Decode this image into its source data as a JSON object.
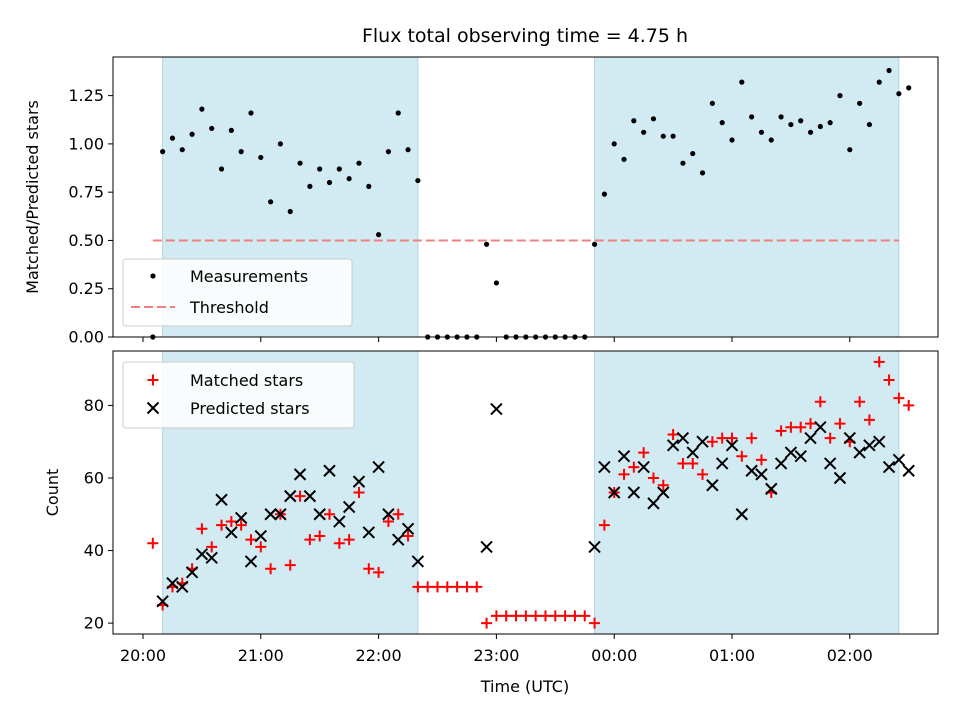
{
  "figure": {
    "title": "Flux total observing time = 4.75 h",
    "xlabel": "Time (UTC)",
    "x_ticks": [
      "20:00",
      "21:00",
      "22:00",
      "23:00",
      "00:00",
      "01:00",
      "02:00"
    ]
  },
  "colors": {
    "shade": "#add8e6",
    "threshold": "#f08080",
    "measurement": "#000000",
    "matched": "#ff0000",
    "predicted": "#000000"
  },
  "chart_data": [
    {
      "type": "scatter",
      "ylabel": "Matched/Predicted stars",
      "xlim": [
        "20:00",
        "02:40"
      ],
      "ylim": [
        0,
        1.45
      ],
      "y_ticks": [
        "0.00",
        "0.25",
        "0.50",
        "0.75",
        "1.00",
        "1.25"
      ],
      "legend": {
        "placement": "lower-left",
        "entries": [
          "Measurements",
          "Threshold"
        ]
      },
      "threshold": {
        "y": 0.5,
        "x_start": "20:05",
        "x_end": "02:25"
      },
      "shaded_intervals": [
        [
          "20:10",
          "22:20"
        ],
        [
          "23:50",
          "02:25"
        ]
      ],
      "series": [
        {
          "name": "Measurements",
          "points": [
            [
              "20:05",
              0.0
            ],
            [
              "20:10",
              0.96
            ],
            [
              "20:15",
              1.03
            ],
            [
              "20:20",
              0.97
            ],
            [
              "20:25",
              1.05
            ],
            [
              "20:30",
              1.18
            ],
            [
              "20:35",
              1.08
            ],
            [
              "20:40",
              0.87
            ],
            [
              "20:45",
              1.07
            ],
            [
              "20:50",
              0.96
            ],
            [
              "20:55",
              1.16
            ],
            [
              "21:00",
              0.93
            ],
            [
              "21:05",
              0.7
            ],
            [
              "21:10",
              1.0
            ],
            [
              "21:15",
              0.65
            ],
            [
              "21:20",
              0.9
            ],
            [
              "21:25",
              0.78
            ],
            [
              "21:30",
              0.87
            ],
            [
              "21:35",
              0.8
            ],
            [
              "21:40",
              0.87
            ],
            [
              "21:45",
              0.82
            ],
            [
              "21:50",
              0.9
            ],
            [
              "21:55",
              0.78
            ],
            [
              "22:00",
              0.53
            ],
            [
              "22:05",
              0.96
            ],
            [
              "22:10",
              1.16
            ],
            [
              "22:15",
              0.97
            ],
            [
              "22:20",
              0.81
            ],
            [
              "22:25",
              0.0
            ],
            [
              "22:30",
              0.0
            ],
            [
              "22:35",
              0.0
            ],
            [
              "22:40",
              0.0
            ],
            [
              "22:45",
              0.0
            ],
            [
              "22:50",
              0.0
            ],
            [
              "22:55",
              0.48
            ],
            [
              "23:00",
              0.28
            ],
            [
              "23:05",
              0.0
            ],
            [
              "23:10",
              0.0
            ],
            [
              "23:15",
              0.0
            ],
            [
              "23:20",
              0.0
            ],
            [
              "23:25",
              0.0
            ],
            [
              "23:30",
              0.0
            ],
            [
              "23:35",
              0.0
            ],
            [
              "23:40",
              0.0
            ],
            [
              "23:45",
              0.0
            ],
            [
              "23:50",
              0.48
            ],
            [
              "23:55",
              0.74
            ],
            [
              "00:00",
              1.0
            ],
            [
              "00:05",
              0.92
            ],
            [
              "00:10",
              1.12
            ],
            [
              "00:15",
              1.06
            ],
            [
              "00:20",
              1.13
            ],
            [
              "00:25",
              1.04
            ],
            [
              "00:30",
              1.04
            ],
            [
              "00:35",
              0.9
            ],
            [
              "00:40",
              0.95
            ],
            [
              "00:45",
              0.85
            ],
            [
              "00:50",
              1.21
            ],
            [
              "00:55",
              1.11
            ],
            [
              "01:00",
              1.02
            ],
            [
              "01:05",
              1.32
            ],
            [
              "01:10",
              1.14
            ],
            [
              "01:15",
              1.06
            ],
            [
              "01:20",
              1.02
            ],
            [
              "01:25",
              1.14
            ],
            [
              "01:30",
              1.1
            ],
            [
              "01:35",
              1.12
            ],
            [
              "01:40",
              1.06
            ],
            [
              "01:45",
              1.09
            ],
            [
              "01:50",
              1.11
            ],
            [
              "01:55",
              1.25
            ],
            [
              "02:00",
              0.97
            ],
            [
              "02:05",
              1.21
            ],
            [
              "02:10",
              1.1
            ],
            [
              "02:15",
              1.32
            ],
            [
              "02:20",
              1.38
            ],
            [
              "02:25",
              1.26
            ],
            [
              "02:30",
              1.29
            ]
          ]
        },
        {
          "name": "Threshold",
          "y": 0.5
        }
      ]
    },
    {
      "type": "scatter",
      "ylabel": "Count",
      "xlim": [
        "20:00",
        "02:40"
      ],
      "ylim": [
        17,
        95
      ],
      "y_ticks": [
        "20",
        "40",
        "60",
        "80"
      ],
      "legend": {
        "placement": "upper-left",
        "entries": [
          "Matched stars",
          "Predicted stars"
        ]
      },
      "shaded_intervals": [
        [
          "20:10",
          "22:20"
        ],
        [
          "23:50",
          "02:25"
        ]
      ],
      "series": [
        {
          "name": "Matched stars",
          "points": [
            [
              "20:05",
              42
            ],
            [
              "20:10",
              25
            ],
            [
              "20:15",
              30
            ],
            [
              "20:20",
              31
            ],
            [
              "20:25",
              35
            ],
            [
              "20:30",
              46
            ],
            [
              "20:35",
              41
            ],
            [
              "20:40",
              47
            ],
            [
              "20:45",
              48
            ],
            [
              "20:50",
              47
            ],
            [
              "20:55",
              43
            ],
            [
              "21:00",
              41
            ],
            [
              "21:05",
              35
            ],
            [
              "21:10",
              50
            ],
            [
              "21:15",
              36
            ],
            [
              "21:20",
              55
            ],
            [
              "21:25",
              43
            ],
            [
              "21:30",
              44
            ],
            [
              "21:35",
              50
            ],
            [
              "21:40",
              42
            ],
            [
              "21:45",
              43
            ],
            [
              "21:50",
              56
            ],
            [
              "21:55",
              35
            ],
            [
              "22:00",
              34
            ],
            [
              "22:05",
              48
            ],
            [
              "22:10",
              50
            ],
            [
              "22:15",
              44
            ],
            [
              "22:20",
              30
            ],
            [
              "22:25",
              30
            ],
            [
              "22:30",
              30
            ],
            [
              "22:35",
              30
            ],
            [
              "22:40",
              30
            ],
            [
              "22:45",
              30
            ],
            [
              "22:50",
              30
            ],
            [
              "22:55",
              20
            ],
            [
              "23:00",
              22
            ],
            [
              "23:05",
              22
            ],
            [
              "23:10",
              22
            ],
            [
              "23:15",
              22
            ],
            [
              "23:20",
              22
            ],
            [
              "23:25",
              22
            ],
            [
              "23:30",
              22
            ],
            [
              "23:35",
              22
            ],
            [
              "23:40",
              22
            ],
            [
              "23:45",
              22
            ],
            [
              "23:50",
              20
            ],
            [
              "23:55",
              47
            ],
            [
              "00:00",
              56
            ],
            [
              "00:05",
              61
            ],
            [
              "00:10",
              63
            ],
            [
              "00:15",
              67
            ],
            [
              "00:20",
              60
            ],
            [
              "00:25",
              58
            ],
            [
              "00:30",
              72
            ],
            [
              "00:35",
              64
            ],
            [
              "00:40",
              64
            ],
            [
              "00:45",
              61
            ],
            [
              "00:50",
              70
            ],
            [
              "00:55",
              71
            ],
            [
              "01:00",
              71
            ],
            [
              "01:05",
              66
            ],
            [
              "01:10",
              71
            ],
            [
              "01:15",
              65
            ],
            [
              "01:20",
              56
            ],
            [
              "01:25",
              73
            ],
            [
              "01:30",
              74
            ],
            [
              "01:35",
              74
            ],
            [
              "01:40",
              75
            ],
            [
              "01:45",
              81
            ],
            [
              "01:50",
              71
            ],
            [
              "01:55",
              75
            ],
            [
              "02:00",
              70
            ],
            [
              "02:05",
              81
            ],
            [
              "02:10",
              76
            ],
            [
              "02:15",
              92
            ],
            [
              "02:20",
              87
            ],
            [
              "02:25",
              82
            ],
            [
              "02:30",
              80
            ]
          ]
        },
        {
          "name": "Predicted stars",
          "points": [
            [
              "20:10",
              26
            ],
            [
              "20:15",
              31
            ],
            [
              "20:20",
              30
            ],
            [
              "20:25",
              34
            ],
            [
              "20:30",
              39
            ],
            [
              "20:35",
              38
            ],
            [
              "20:40",
              54
            ],
            [
              "20:45",
              45
            ],
            [
              "20:50",
              49
            ],
            [
              "20:55",
              37
            ],
            [
              "21:00",
              44
            ],
            [
              "21:05",
              50
            ],
            [
              "21:10",
              50
            ],
            [
              "21:15",
              55
            ],
            [
              "21:20",
              61
            ],
            [
              "21:25",
              55
            ],
            [
              "21:30",
              50
            ],
            [
              "21:35",
              62
            ],
            [
              "21:40",
              48
            ],
            [
              "21:45",
              52
            ],
            [
              "21:50",
              59
            ],
            [
              "21:55",
              45
            ],
            [
              "22:00",
              63
            ],
            [
              "22:05",
              50
            ],
            [
              "22:10",
              43
            ],
            [
              "22:15",
              46
            ],
            [
              "22:20",
              37
            ],
            [
              "22:55",
              41
            ],
            [
              "23:00",
              79
            ],
            [
              "23:50",
              41
            ],
            [
              "23:55",
              63
            ],
            [
              "00:00",
              56
            ],
            [
              "00:05",
              66
            ],
            [
              "00:10",
              56
            ],
            [
              "00:15",
              63
            ],
            [
              "00:20",
              53
            ],
            [
              "00:25",
              56
            ],
            [
              "00:30",
              69
            ],
            [
              "00:35",
              71
            ],
            [
              "00:40",
              67
            ],
            [
              "00:45",
              70
            ],
            [
              "00:50",
              58
            ],
            [
              "00:55",
              64
            ],
            [
              "01:00",
              69
            ],
            [
              "01:05",
              50
            ],
            [
              "01:10",
              62
            ],
            [
              "01:15",
              61
            ],
            [
              "01:20",
              57
            ],
            [
              "01:25",
              64
            ],
            [
              "01:30",
              67
            ],
            [
              "01:35",
              66
            ],
            [
              "01:40",
              71
            ],
            [
              "01:45",
              74
            ],
            [
              "01:50",
              64
            ],
            [
              "01:55",
              60
            ],
            [
              "02:00",
              71
            ],
            [
              "02:05",
              67
            ],
            [
              "02:10",
              69
            ],
            [
              "02:15",
              70
            ],
            [
              "02:20",
              63
            ],
            [
              "02:25",
              65
            ],
            [
              "02:30",
              62
            ]
          ]
        }
      ]
    }
  ]
}
